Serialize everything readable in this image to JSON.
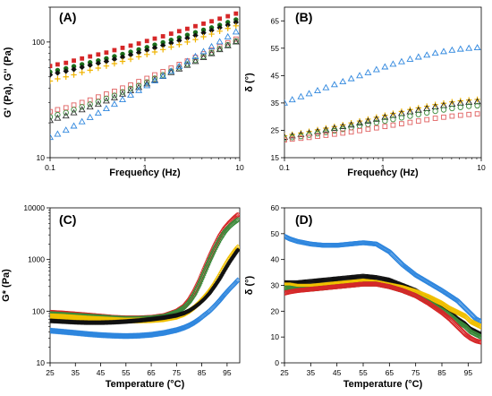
{
  "chart_data": [
    {
      "panel_label": "(A)",
      "type": "scatter",
      "xlabel": "Frequency (Hz)",
      "ylabel": "G' (Pa), G'' (Pa)",
      "xscale": "log",
      "yscale": "log",
      "xlim": [
        0.1,
        10
      ],
      "ylim": [
        10,
        200
      ],
      "x_ticks": [
        "0.1",
        "1",
        "10"
      ],
      "y_ticks": [
        "10",
        "100"
      ],
      "x": [
        0.1,
        0.12,
        0.147,
        0.178,
        0.217,
        0.264,
        0.322,
        0.392,
        0.477,
        0.581,
        0.707,
        0.861,
        1.05,
        1.27,
        1.55,
        1.89,
        2.3,
        2.8,
        3.41,
        4.15,
        5.05,
        6.15,
        7.49,
        9.12
      ],
      "series": [
        {
          "color": "#d62728",
          "marker": "filled-square",
          "values": [
            62,
            64,
            66,
            69,
            72,
            75,
            78,
            81,
            85,
            89,
            93,
            97,
            102,
            107,
            112,
            118,
            124,
            130,
            137,
            144,
            151,
            159,
            167,
            176
          ]
        },
        {
          "color": "#1a6e1a",
          "marker": "filled-circle",
          "values": [
            55,
            57,
            59,
            61.5,
            64,
            66.5,
            69,
            72,
            75,
            78.5,
            82,
            86,
            90,
            94.5,
            99,
            104,
            109,
            115,
            121,
            127,
            133,
            140,
            148,
            156
          ]
        },
        {
          "color": "#111111",
          "marker": "filled-diamond",
          "values": [
            52,
            54,
            56,
            58,
            60.5,
            63,
            65.5,
            68,
            71,
            74,
            77.5,
            81,
            85,
            89,
            93.5,
            98,
            103,
            108,
            114,
            120,
            126,
            133,
            140,
            148
          ]
        },
        {
          "color": "#f0b400",
          "marker": "plus",
          "values": [
            46,
            48,
            50,
            52,
            54.5,
            57,
            59.5,
            62,
            65,
            68,
            71,
            74.5,
            78,
            82,
            86,
            90.5,
            95,
            100,
            105,
            111,
            117,
            124,
            131,
            138
          ]
        },
        {
          "color": "#e06060",
          "marker": "open-square",
          "values": [
            25,
            26,
            27,
            28.5,
            30,
            31.5,
            33.5,
            35.5,
            37.5,
            40,
            42.5,
            45.5,
            48.5,
            52,
            55.5,
            59.5,
            64,
            68.5,
            73.5,
            79,
            85,
            91.5,
            98.5,
            106
          ]
        },
        {
          "color": "#3a8a3a",
          "marker": "open-circle",
          "values": [
            22.5,
            23.5,
            24.5,
            26,
            27.5,
            29,
            30.5,
            32.5,
            34.5,
            37,
            39.5,
            42,
            45,
            48.5,
            52,
            56,
            60,
            64.5,
            69.5,
            75,
            81,
            87.5,
            94.5,
            102
          ]
        },
        {
          "color": "#333333",
          "marker": "open-triangle",
          "values": [
            21,
            22,
            23,
            24.5,
            26,
            27.5,
            29,
            31,
            33,
            35.5,
            38,
            40.5,
            43.5,
            47,
            50.5,
            54.5,
            58.5,
            63,
            68,
            73.5,
            79.5,
            86,
            93,
            100.5
          ]
        },
        {
          "color": "#2e86de",
          "marker": "open-triangle",
          "values": [
            15,
            16,
            17.3,
            18.8,
            20.5,
            22.3,
            24.3,
            26.6,
            29,
            31.8,
            34.8,
            38.2,
            42,
            46.2,
            50.8,
            56,
            61.7,
            68,
            75,
            82.7,
            91.2,
            100.6,
            111,
            122.5
          ]
        }
      ]
    },
    {
      "panel_label": "(B)",
      "type": "scatter",
      "xlabel": "Frequency (Hz)",
      "ylabel": "δ (°)",
      "xscale": "log",
      "xlim": [
        0.1,
        10
      ],
      "ylim": [
        15,
        70
      ],
      "x_ticks": [
        "0.1",
        "1",
        "10"
      ],
      "y_ticks": [
        "15",
        "25",
        "35",
        "45",
        "55",
        "65"
      ],
      "x": [
        0.1,
        0.12,
        0.147,
        0.178,
        0.217,
        0.264,
        0.322,
        0.392,
        0.477,
        0.581,
        0.707,
        0.861,
        1.05,
        1.27,
        1.55,
        1.89,
        2.3,
        2.8,
        3.41,
        4.15,
        5.05,
        6.15,
        7.49,
        9.12
      ],
      "series": [
        {
          "color": "#2e86de",
          "marker": "open-triangle",
          "values": [
            35,
            36.2,
            37.3,
            38.4,
            39.5,
            40.6,
            41.7,
            42.8,
            43.9,
            45,
            46.1,
            47.2,
            48.2,
            49.2,
            50.1,
            51,
            51.8,
            52.5,
            53.2,
            53.8,
            54.3,
            54.7,
            55,
            55.2
          ]
        },
        {
          "color": "#f0b400",
          "marker": "plus",
          "values": [
            23,
            23.5,
            24,
            24.6,
            25.2,
            25.8,
            26.4,
            27,
            27.7,
            28.4,
            29.1,
            29.8,
            30.5,
            31.2,
            31.9,
            32.6,
            33.2,
            33.8,
            34.4,
            34.9,
            35.4,
            35.8,
            36.1,
            36.3
          ]
        },
        {
          "color": "#1a1a1a",
          "marker": "open-triangle",
          "values": [
            22.5,
            23,
            23.5,
            24,
            24.6,
            25.2,
            25.8,
            26.4,
            27,
            27.7,
            28.4,
            29.1,
            29.8,
            30.5,
            31.2,
            31.8,
            32.4,
            33,
            33.6,
            34.1,
            34.6,
            35,
            35.3,
            35.5
          ]
        },
        {
          "color": "#3a8a3a",
          "marker": "open-circle",
          "values": [
            22,
            22.4,
            22.8,
            23.3,
            23.8,
            24.3,
            24.8,
            25.4,
            26,
            26.6,
            27.2,
            27.8,
            28.4,
            29,
            29.6,
            30.2,
            30.8,
            31.4,
            32,
            32.5,
            33,
            33.4,
            33.8,
            34
          ]
        },
        {
          "color": "#e06060",
          "marker": "open-square",
          "values": [
            21.5,
            21.8,
            22.1,
            22.4,
            22.8,
            23.2,
            23.6,
            24,
            24.4,
            24.9,
            25.4,
            25.9,
            26.4,
            26.9,
            27.4,
            27.9,
            28.4,
            28.9,
            29.4,
            29.8,
            30.2,
            30.5,
            30.8,
            31
          ]
        }
      ]
    },
    {
      "panel_label": "(C)",
      "type": "scatter",
      "xlabel": "Temperature (°C)",
      "ylabel": "G* (Pa)",
      "yscale": "log",
      "xlim": [
        25,
        100
      ],
      "ylim": [
        10,
        10000
      ],
      "x_ticks": [
        "25",
        "35",
        "45",
        "55",
        "65",
        "75",
        "85",
        "95"
      ],
      "y_ticks": [
        "10",
        "100",
        "1000",
        "10000"
      ],
      "x": [
        25,
        30,
        35,
        40,
        45,
        50,
        55,
        60,
        65,
        70,
        75,
        78,
        80,
        82,
        84,
        86,
        88,
        90,
        92,
        94,
        96,
        98,
        99.5
      ],
      "series": [
        {
          "color": "#d62728",
          "marker": "open-circle",
          "values": [
            95,
            92,
            88,
            84,
            80,
            76,
            74,
            74,
            76,
            82,
            100,
            125,
            165,
            240,
            380,
            650,
            1100,
            1800,
            2800,
            4000,
            5200,
            6500,
            7500
          ]
        },
        {
          "color": "#3a8a3a",
          "marker": "open-diamond",
          "values": [
            88,
            85,
            82,
            79,
            76,
            73,
            71,
            71,
            73,
            78,
            95,
            118,
            150,
            210,
            330,
            560,
            950,
            1550,
            2400,
            3400,
            4400,
            5300,
            6000
          ]
        },
        {
          "color": "#f0c000",
          "marker": "open-diamond",
          "values": [
            80,
            78,
            75,
            72,
            70,
            68,
            66,
            66,
            67,
            70,
            78,
            88,
            100,
            118,
            145,
            185,
            240,
            330,
            480,
            720,
            1050,
            1450,
            1800
          ]
        },
        {
          "color": "#111111",
          "marker": "filled-diamond",
          "values": [
            65,
            63,
            61,
            60,
            60,
            61,
            63,
            66,
            70,
            75,
            83,
            92,
            102,
            118,
            140,
            172,
            220,
            300,
            420,
            620,
            900,
            1250,
            1600
          ]
        },
        {
          "color": "#2e86de",
          "marker": "open-diamond",
          "values": [
            42,
            40,
            38,
            36,
            34.5,
            33.5,
            33,
            33.5,
            35,
            38,
            43,
            48,
            53,
            60,
            70,
            84,
            100,
            125,
            160,
            210,
            270,
            340,
            410
          ]
        }
      ]
    },
    {
      "panel_label": "(D)",
      "type": "scatter",
      "xlabel": "Temperature (°C)",
      "ylabel": "δ (°)",
      "xlim": [
        25,
        100
      ],
      "ylim": [
        0,
        60
      ],
      "x_ticks": [
        "25",
        "35",
        "45",
        "55",
        "65",
        "75",
        "85",
        "95"
      ],
      "y_ticks": [
        "0",
        "10",
        "20",
        "30",
        "40",
        "50",
        "60"
      ],
      "x": [
        25,
        27,
        30,
        35,
        40,
        45,
        50,
        55,
        60,
        65,
        70,
        75,
        80,
        85,
        88,
        91,
        94,
        96,
        98,
        100
      ],
      "series": [
        {
          "color": "#2e86de",
          "marker": "open-circle",
          "values": [
            49,
            48,
            47,
            46,
            45.5,
            45.5,
            46,
            46.5,
            46,
            43,
            38,
            34,
            31,
            28,
            26,
            24,
            21,
            19,
            17,
            16
          ]
        },
        {
          "color": "#111111",
          "marker": "plus",
          "values": [
            31,
            31,
            31,
            31.5,
            32,
            32.5,
            33,
            33.5,
            33,
            32,
            30,
            28,
            25,
            22,
            20,
            17,
            15,
            13,
            12,
            11
          ]
        },
        {
          "color": "#f0c000",
          "marker": "open-diamond",
          "values": [
            30,
            30,
            29.5,
            29.5,
            30,
            30.5,
            31,
            31.5,
            31,
            30,
            29,
            27.5,
            25.5,
            23,
            21,
            19.5,
            18,
            16,
            15,
            14
          ]
        },
        {
          "color": "#3a8a3a",
          "marker": "open-circle",
          "values": [
            29,
            29,
            28.5,
            28.5,
            29,
            29.5,
            30,
            30.5,
            30.5,
            29.5,
            28,
            26,
            23.5,
            20.5,
            18.5,
            16,
            14,
            12,
            11,
            10
          ]
        },
        {
          "color": "#d62728",
          "marker": "open-circle",
          "values": [
            27,
            27.5,
            28,
            28.5,
            29,
            29.5,
            30,
            30.5,
            30.5,
            29.5,
            28,
            26,
            23,
            19.5,
            17,
            14,
            11,
            9.5,
            8.5,
            8
          ]
        }
      ]
    }
  ]
}
